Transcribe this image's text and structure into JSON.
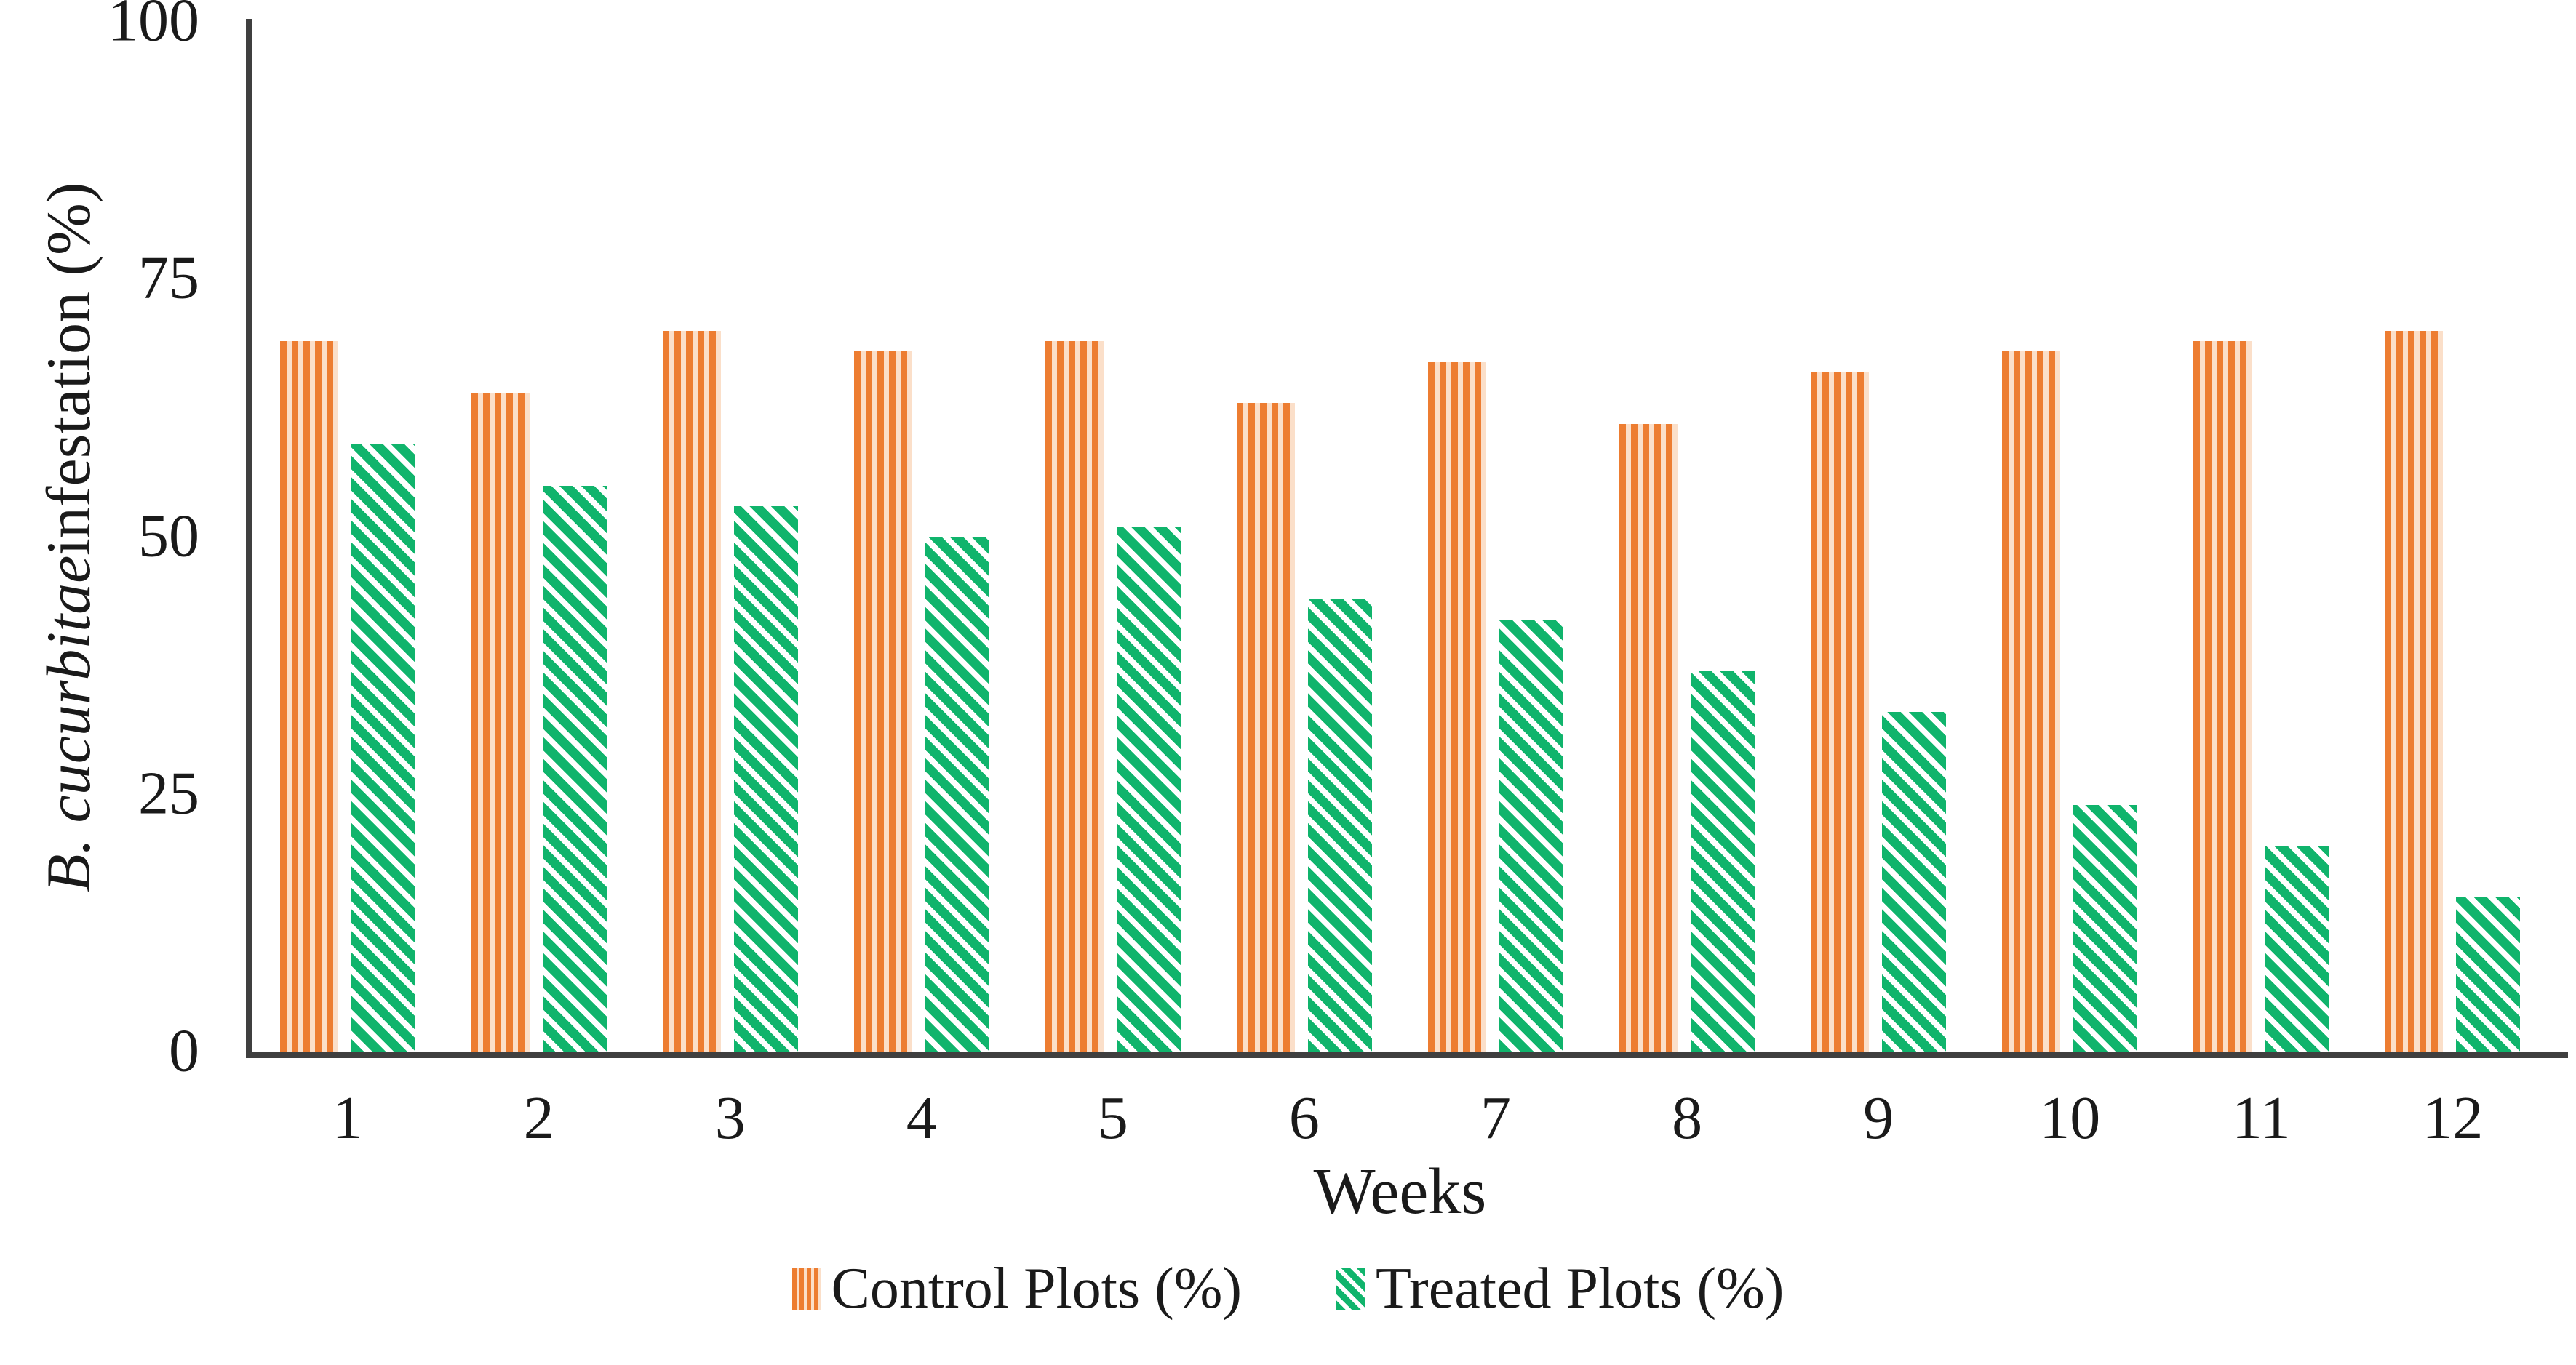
{
  "chart_data": {
    "type": "bar",
    "title": "",
    "xlabel": "Weeks",
    "ylabel": {
      "italic": "B. cucurbitae",
      "rest": " infestation (%)"
    },
    "ylim": [
      0,
      100
    ],
    "yticks": [
      100,
      75,
      50,
      25,
      0
    ],
    "grid": false,
    "legend_position": "bottom",
    "categories": [
      "1",
      "2",
      "3",
      "4",
      "5",
      "6",
      "7",
      "8",
      "9",
      "10",
      "11",
      "12"
    ],
    "series": [
      {
        "name": "Control Plots (%)",
        "pattern": "vertical-stripes",
        "color": "#ED7D31",
        "values": [
          69,
          64,
          70,
          68,
          69,
          63,
          67,
          61,
          66,
          68,
          69,
          70
        ]
      },
      {
        "name": "Treated Plots (%)",
        "pattern": "diagonal-stripes",
        "color": "#10B46C",
        "values": [
          59,
          55,
          53,
          50,
          51,
          44,
          42,
          37,
          33,
          24,
          20,
          15
        ]
      }
    ]
  },
  "colors": {
    "control_stripe": "#ED7D31",
    "control_background": "#FBDFC9",
    "treated_stripe": "#10B46C",
    "treated_background": "#FFFFFF",
    "axis_line": "#3F3F3F",
    "text": "#1A1A1A"
  }
}
